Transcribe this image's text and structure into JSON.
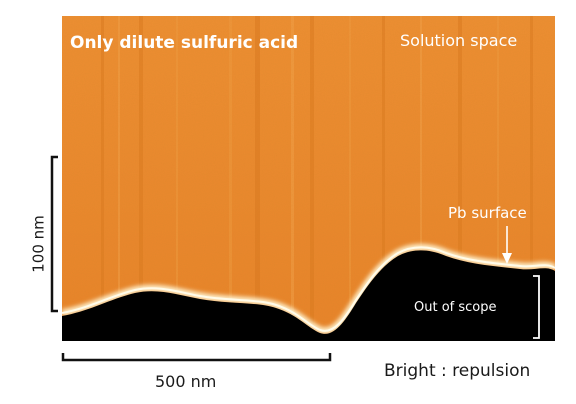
{
  "figure": {
    "title": "Only dilute sulfuric acid",
    "regions": {
      "solution": "Solution space",
      "out_of_scope": "Out of scope"
    },
    "surface_label": "Pb surface",
    "scale_bars": {
      "vertical": "100 nm",
      "horizontal": "500 nm"
    },
    "contrast_note": "Bright : repulsion",
    "colors": {
      "solution": "#ee8e33",
      "solution_dark": "#dd7a20",
      "surface_glow": "#fff3cf",
      "out_of_scope": "#000000",
      "scale_bar": "#111111",
      "text_dark": "#1a1a1a",
      "text_light": "#ffffff"
    },
    "icons": [
      "surface-pointer-arrow-icon"
    ]
  }
}
